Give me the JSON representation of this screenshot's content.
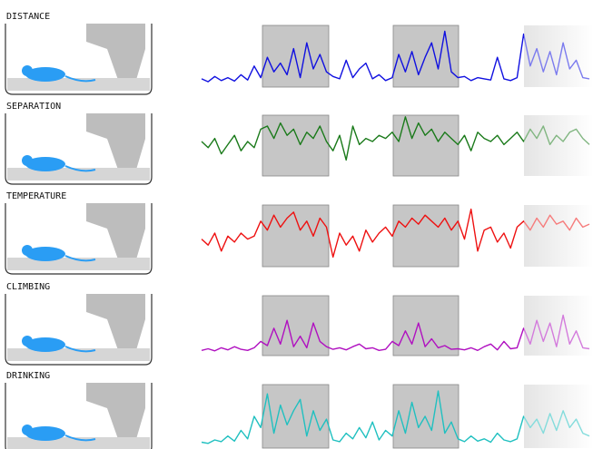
{
  "chart_data": [
    {
      "type": "line",
      "title": "DISTANCE",
      "color": "#1010e0",
      "values": [
        8,
        3,
        12,
        5,
        10,
        4,
        15,
        6,
        30,
        10,
        45,
        20,
        35,
        15,
        60,
        10,
        70,
        25,
        50,
        20,
        12,
        8,
        40,
        10,
        25,
        35,
        8,
        15,
        5,
        10,
        50,
        20,
        55,
        15,
        45,
        70,
        25,
        90,
        20,
        10,
        12,
        5,
        10,
        8,
        6,
        45,
        8,
        5,
        10,
        85,
        30,
        60,
        20,
        55,
        15,
        70,
        25,
        40,
        10,
        8
      ]
    },
    {
      "type": "line",
      "title": "SEPARATION",
      "color": "#1a7a1a",
      "values": [
        50,
        40,
        55,
        30,
        45,
        60,
        35,
        50,
        40,
        70,
        75,
        55,
        80,
        60,
        70,
        45,
        65,
        55,
        75,
        50,
        35,
        60,
        20,
        75,
        45,
        55,
        50,
        60,
        55,
        65,
        50,
        90,
        55,
        80,
        60,
        70,
        50,
        65,
        55,
        45,
        60,
        35,
        65,
        55,
        50,
        60,
        45,
        55,
        65,
        50,
        70,
        55,
        75,
        45,
        60,
        50,
        65,
        70,
        55,
        45
      ]
    },
    {
      "type": "line",
      "title": "TEMPERATURE",
      "color": "#ee1111",
      "values": [
        40,
        30,
        50,
        20,
        45,
        35,
        50,
        40,
        45,
        70,
        55,
        80,
        60,
        75,
        85,
        55,
        70,
        45,
        75,
        60,
        10,
        50,
        30,
        45,
        20,
        55,
        35,
        50,
        60,
        45,
        70,
        60,
        75,
        65,
        80,
        70,
        60,
        75,
        55,
        70,
        40,
        90,
        20,
        55,
        60,
        35,
        50,
        25,
        60,
        70,
        55,
        75,
        60,
        80,
        65,
        70,
        55,
        75,
        60,
        65
      ]
    },
    {
      "type": "line",
      "title": "CLIMBING",
      "color": "#b010c0",
      "values": [
        3,
        6,
        2,
        8,
        4,
        10,
        5,
        3,
        8,
        20,
        12,
        45,
        15,
        60,
        10,
        30,
        8,
        55,
        20,
        10,
        5,
        8,
        4,
        10,
        15,
        6,
        8,
        3,
        5,
        20,
        12,
        40,
        15,
        55,
        10,
        25,
        8,
        12,
        5,
        6,
        4,
        8,
        3,
        10,
        15,
        4,
        20,
        6,
        8,
        45,
        15,
        60,
        20,
        55,
        10,
        70,
        15,
        40,
        8,
        6
      ]
    },
    {
      "type": "line",
      "title": "DRINKING",
      "color": "#20c0c0",
      "values": [
        4,
        2,
        8,
        5,
        15,
        6,
        25,
        10,
        50,
        30,
        90,
        20,
        70,
        35,
        60,
        80,
        15,
        60,
        25,
        45,
        8,
        5,
        20,
        10,
        30,
        12,
        40,
        8,
        25,
        15,
        60,
        20,
        75,
        30,
        50,
        25,
        95,
        20,
        40,
        10,
        5,
        15,
        6,
        10,
        4,
        20,
        8,
        5,
        10,
        50,
        30,
        45,
        20,
        55,
        25,
        60,
        30,
        45,
        20,
        15
      ]
    }
  ]
}
